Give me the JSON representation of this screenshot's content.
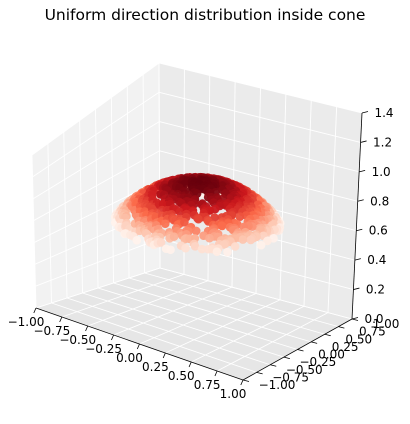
{
  "chart_data": {
    "type": "scatter",
    "projection": "3d",
    "title": "Uniform direction distribution inside cone",
    "xlim": [
      -1.0,
      1.0
    ],
    "ylim": [
      -1.0,
      1.0
    ],
    "zlim": [
      0.0,
      1.4
    ],
    "x_ticks": [
      "−1.00",
      "−0.75",
      "−0.50",
      "−0.25",
      "0.00",
      "0.25",
      "0.50",
      "0.75",
      "1.00"
    ],
    "y_ticks": [
      "−1.00",
      "−0.75",
      "−0.50",
      "−0.25",
      "0.00",
      "0.25",
      "0.50",
      "0.75",
      "1.00"
    ],
    "z_ticks": [
      "0.0",
      "0.2",
      "0.4",
      "0.6",
      "0.8",
      "1.0",
      "1.2",
      "1.4"
    ],
    "grid": true,
    "colormap": "Reds",
    "colormap_stops": [
      "#fff5f0",
      "#fcbba1",
      "#fb6a4a",
      "#cb181d",
      "#67000d"
    ],
    "cone_half_angle_deg": 45,
    "sphere_radius": 1.0,
    "point_count": 900
  }
}
